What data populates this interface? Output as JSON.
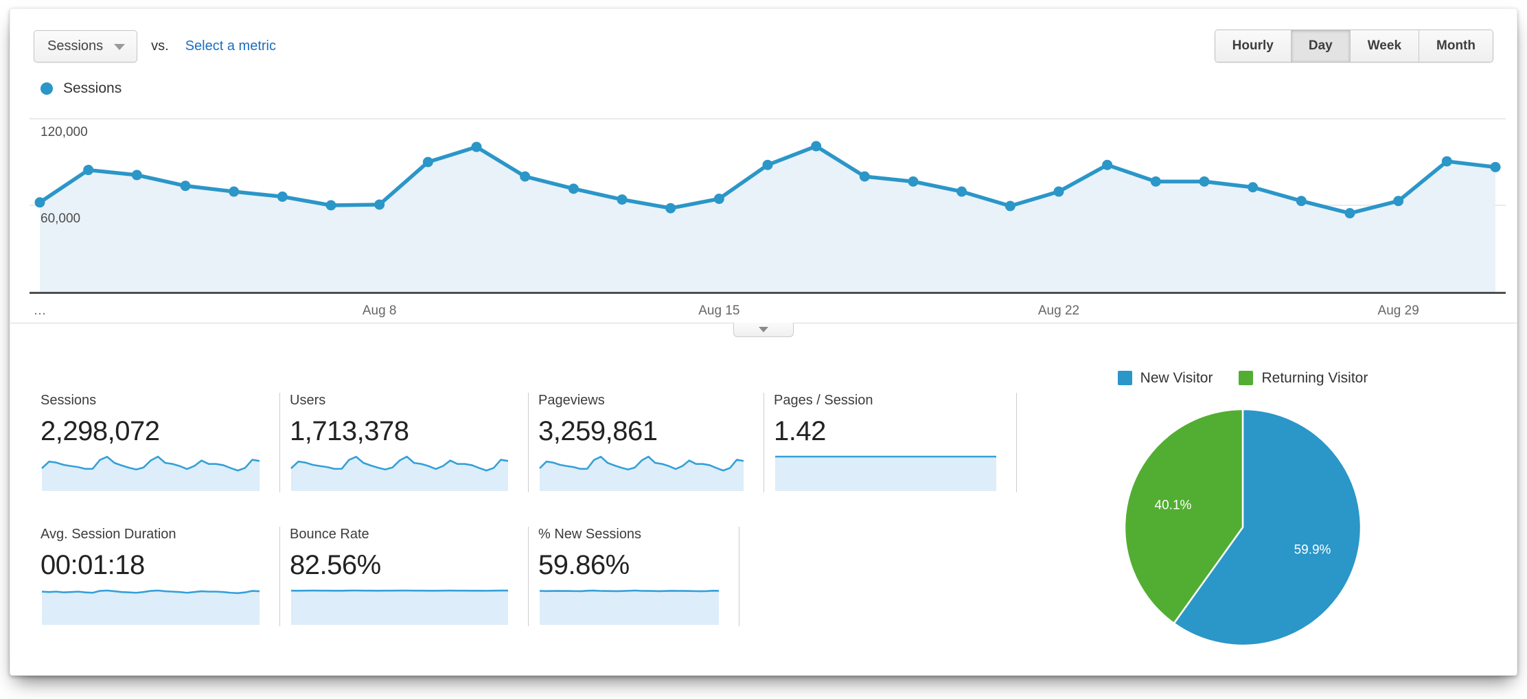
{
  "controls": {
    "metric_selector": {
      "value": "Sessions"
    },
    "vs_label": "vs.",
    "compare_link": "Select a metric",
    "granularity_options": [
      "Hourly",
      "Day",
      "Week",
      "Month"
    ],
    "granularity_active": "Day"
  },
  "legend": {
    "series_label": "Sessions"
  },
  "colors": {
    "blue": "#2b96c8",
    "green": "#52ae32",
    "spark_line": "#34a0d8",
    "area_fill": "#e9f2f9",
    "spark_fill": "#ddedf9",
    "gridline": "#e4e4e4",
    "axis": "#4f4f4f",
    "link": "#1b6dbf"
  },
  "chart_data": [
    {
      "type": "line",
      "title": "Sessions by day",
      "x": [
        "Aug 1",
        "Aug 2",
        "Aug 3",
        "Aug 4",
        "Aug 5",
        "Aug 6",
        "Aug 7",
        "Aug 8",
        "Aug 9",
        "Aug 10",
        "Aug 11",
        "Aug 12",
        "Aug 13",
        "Aug 14",
        "Aug 15",
        "Aug 16",
        "Aug 17",
        "Aug 18",
        "Aug 19",
        "Aug 20",
        "Aug 21",
        "Aug 22",
        "Aug 23",
        "Aug 24",
        "Aug 25",
        "Aug 26",
        "Aug 27",
        "Aug 28",
        "Aug 29",
        "Aug 30",
        "Aug 31"
      ],
      "series": [
        {
          "name": "Sessions",
          "values": [
            62000,
            84500,
            81000,
            73500,
            69500,
            66000,
            60000,
            60500,
            90000,
            100500,
            80000,
            71500,
            64000,
            58000,
            64500,
            88000,
            101000,
            80000,
            76500,
            69500,
            59500,
            69500,
            88000,
            76500,
            76500,
            72500,
            63000,
            54500,
            63000,
            90500,
            86500
          ]
        }
      ],
      "ylim": [
        0,
        128000
      ],
      "y_ticks": [
        {
          "value": 60000,
          "label": "60,000"
        },
        {
          "value": 120000,
          "label": "120,000"
        }
      ],
      "x_ticks": [
        {
          "index": 0,
          "label": "…"
        },
        {
          "index": 7,
          "label": "Aug 8"
        },
        {
          "index": 14,
          "label": "Aug 15"
        },
        {
          "index": 21,
          "label": "Aug 22"
        },
        {
          "index": 28,
          "label": "Aug 29"
        }
      ],
      "grid": "horizontal",
      "marker": "circle",
      "legend_position": "top-left"
    },
    {
      "type": "pie",
      "labels": [
        "New Visitor",
        "Returning Visitor"
      ],
      "values": [
        59.9,
        40.1
      ],
      "value_labels": [
        "59.9%",
        "40.1%"
      ],
      "colors": [
        "#2b96c8",
        "#52ae32"
      ],
      "legend_position": "top"
    }
  ],
  "pie_legend": [
    {
      "label": "New Visitor",
      "color": "#2b96c8"
    },
    {
      "label": "Returning Visitor",
      "color": "#52ae32"
    }
  ],
  "scorecards": {
    "row1": [
      {
        "label": "Sessions",
        "value": "2,298,072",
        "spark": [
          62000,
          84500,
          81000,
          73500,
          69500,
          66000,
          60000,
          60500,
          90000,
          100500,
          80000,
          71500,
          64000,
          58000,
          64500,
          88000,
          101000,
          80000,
          76500,
          69500,
          59500,
          69500,
          88000,
          76500,
          76500,
          72500,
          63000,
          54500,
          63000,
          90500,
          86500
        ]
      },
      {
        "label": "Users",
        "value": "1,713,378",
        "spark": [
          62000,
          84500,
          81000,
          73500,
          69500,
          66000,
          60000,
          60500,
          90000,
          100500,
          80000,
          71500,
          64000,
          58000,
          64500,
          88000,
          101000,
          80000,
          76500,
          69500,
          59500,
          69500,
          88000,
          76500,
          76500,
          72500,
          63000,
          54500,
          63000,
          90500,
          86500
        ]
      },
      {
        "label": "Pageviews",
        "value": "3,259,861",
        "spark": [
          62000,
          84500,
          81000,
          73500,
          69500,
          66000,
          60000,
          60500,
          90000,
          100500,
          80000,
          71500,
          64000,
          58000,
          64500,
          88000,
          101000,
          80000,
          76500,
          69500,
          59500,
          69500,
          88000,
          76500,
          76500,
          72500,
          63000,
          54500,
          63000,
          90500,
          86500
        ]
      },
      {
        "label": "Pages / Session",
        "value": "1.42",
        "spark": [
          1.42,
          1.42,
          1.42,
          1.42,
          1.42,
          1.42,
          1.42,
          1.42,
          1.42,
          1.42,
          1.42,
          1.42,
          1.42,
          1.42,
          1.42,
          1.42,
          1.42,
          1.42,
          1.42,
          1.42,
          1.42,
          1.42,
          1.42,
          1.42,
          1.42,
          1.42,
          1.42,
          1.42,
          1.42,
          1.42,
          1.42
        ]
      }
    ],
    "row2": [
      {
        "label": "Avg. Session Duration",
        "value": "00:01:18",
        "spark": [
          78,
          77,
          78,
          76,
          77,
          78,
          76,
          75,
          80,
          81,
          79,
          77,
          76,
          75,
          77,
          80,
          81,
          79,
          78,
          77,
          75,
          77,
          79,
          78,
          78,
          77,
          75,
          74,
          76,
          80,
          79
        ]
      },
      {
        "label": "Bounce Rate",
        "value": "82.56%",
        "spark": [
          82.6,
          82.4,
          82.5,
          82.7,
          82.5,
          82.6,
          82.4,
          82.3,
          82.8,
          82.9,
          82.6,
          82.5,
          82.4,
          82.6,
          82.5,
          82.7,
          82.9,
          82.6,
          82.5,
          82.4,
          82.3,
          82.5,
          82.7,
          82.6,
          82.5,
          82.4,
          82.3,
          82.2,
          82.5,
          82.8,
          82.7
        ]
      },
      {
        "label": "% New Sessions",
        "value": "59.86%",
        "spark": [
          59.9,
          59.5,
          59.7,
          59.8,
          59.6,
          59.7,
          59.4,
          59.3,
          60.2,
          60.5,
          59.9,
          59.7,
          59.5,
          59.3,
          59.6,
          60.1,
          60.6,
          59.9,
          59.8,
          59.6,
          59.3,
          59.6,
          60.0,
          59.8,
          59.8,
          59.6,
          59.4,
          59.2,
          59.5,
          60.2,
          60.0
        ]
      }
    ]
  }
}
